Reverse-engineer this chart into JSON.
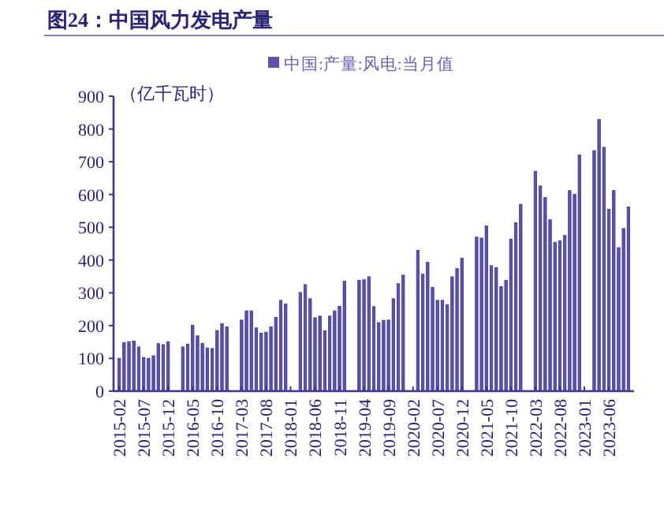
{
  "chart_data": {
    "type": "bar",
    "title": "图24：中国风力发电产量",
    "ylabel": "（亿千瓦时）",
    "categories": [
      "2015-02",
      null,
      null,
      null,
      null,
      "2015-07",
      null,
      null,
      null,
      null,
      "2015-12",
      null,
      null,
      null,
      null,
      "2016-05",
      null,
      null,
      null,
      null,
      "2016-10",
      null,
      null,
      null,
      null,
      "2017-03",
      null,
      null,
      null,
      null,
      "2017-08",
      null,
      null,
      null,
      null,
      "2018-01",
      null,
      null,
      null,
      null,
      "2018-06",
      null,
      null,
      null,
      null,
      "2018-11",
      null,
      null,
      null,
      null,
      "2019-04",
      null,
      null,
      null,
      null,
      "2019-09",
      null,
      null,
      null,
      null,
      "2020-02",
      null,
      null,
      null,
      null,
      "2020-07",
      null,
      null,
      null,
      null,
      "2020-12",
      null,
      null,
      null,
      null,
      "2021-05",
      null,
      null,
      null,
      null,
      "2021-10",
      null,
      null,
      null,
      null,
      "2022-03",
      null,
      null,
      null,
      null,
      "2022-08",
      null,
      null,
      null,
      null,
      "2023-01",
      null,
      null,
      null,
      null,
      "2023-06",
      null,
      null,
      null,
      null
    ],
    "series": [
      {
        "name": "中国:产量:风电:当月值",
        "color": "#5e52a8",
        "values": [
          100,
          148,
          151,
          153,
          135,
          103,
          100,
          108,
          145,
          142,
          151,
          null,
          null,
          135,
          143,
          201,
          169,
          146,
          132,
          130,
          185,
          206,
          196,
          null,
          null,
          217,
          245,
          245,
          193,
          177,
          180,
          196,
          225,
          277,
          266,
          null,
          null,
          301,
          325,
          282,
          224,
          229,
          184,
          229,
          245,
          259,
          336,
          null,
          null,
          338,
          340,
          349,
          258,
          209,
          216,
          217,
          282,
          328,
          354,
          null,
          null,
          430,
          357,
          393,
          317,
          277,
          277,
          264,
          349,
          374,
          406,
          null,
          null,
          470,
          467,
          504,
          383,
          377,
          319,
          338,
          464,
          514,
          570,
          null,
          null,
          671,
          626,
          591,
          523,
          454,
          459,
          475,
          612,
          601,
          721,
          null,
          null,
          734,
          829,
          744,
          555,
          612,
          438,
          496,
          562
        ]
      }
    ],
    "ylim": [
      0,
      900
    ],
    "yticks": [
      0,
      100,
      200,
      300,
      400,
      500,
      600,
      700,
      800,
      900
    ],
    "legend": "top",
    "grid": false
  }
}
